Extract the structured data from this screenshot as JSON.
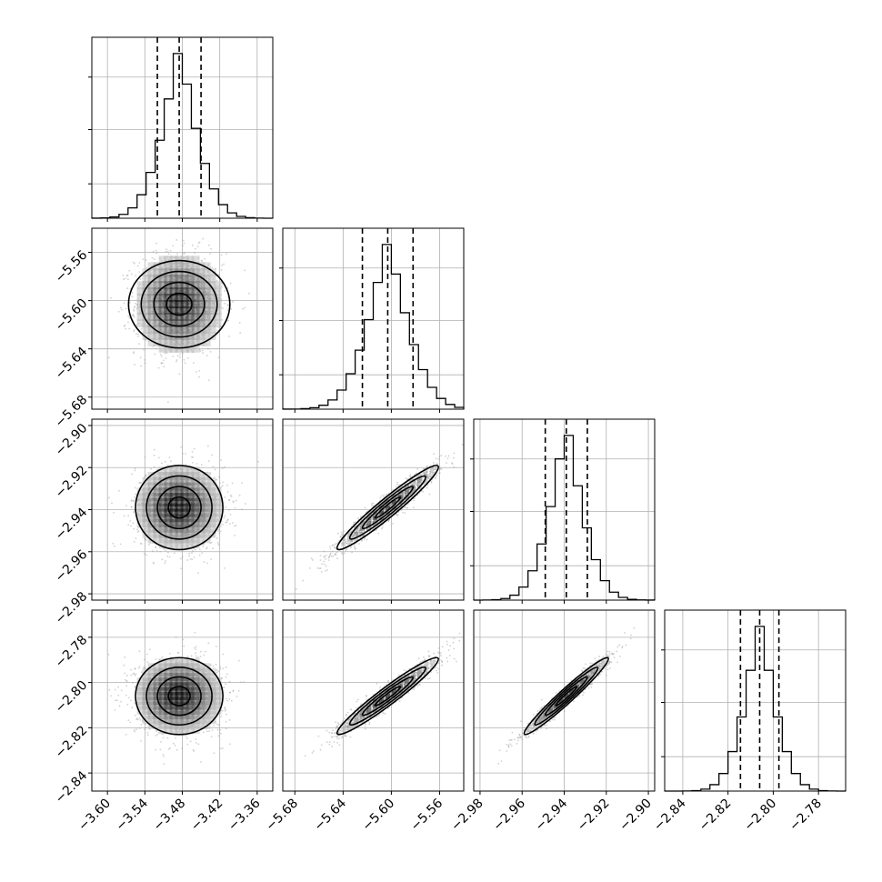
{
  "chart_data": {
    "type": "corner",
    "grid": true,
    "parameters": [
      {
        "index": 0,
        "mean": -3.485,
        "std": 0.035,
        "range": [
          -3.625,
          -3.335
        ],
        "ticks": [
          -3.6,
          -3.54,
          -3.48,
          -3.42,
          -3.36
        ],
        "tick_labels": [
          "−3.60",
          "−3.54",
          "−3.48",
          "−3.42",
          "−3.36"
        ]
      },
      {
        "index": 1,
        "mean": -5.603,
        "std": 0.021,
        "range": [
          -5.69,
          -5.54
        ],
        "ticks": [
          -5.68,
          -5.64,
          -5.6,
          -5.56
        ],
        "tick_labels": [
          "−5.68",
          "−5.64",
          "−5.60",
          "−5.56"
        ]
      },
      {
        "index": 2,
        "mean": -2.939,
        "std": 0.01,
        "range": [
          -2.983,
          -2.897
        ],
        "ticks": [
          -2.98,
          -2.96,
          -2.94,
          -2.92,
          -2.9
        ],
        "tick_labels": [
          "−2.98",
          "−2.96",
          "−2.94",
          "−2.92",
          "−2.90"
        ]
      },
      {
        "index": 3,
        "mean": -2.806,
        "std": 0.0085,
        "range": [
          -2.848,
          -2.768
        ],
        "ticks": [
          -2.84,
          -2.82,
          -2.8,
          -2.78
        ],
        "tick_labels": [
          "−2.84",
          "−2.82",
          "−2.80",
          "−2.78"
        ]
      }
    ],
    "quantiles": [
      0.16,
      0.5,
      0.84
    ],
    "quantile_values": [
      [
        -3.52,
        -3.485,
        -3.45
      ],
      [
        -5.624,
        -5.603,
        -5.582
      ],
      [
        -2.949,
        -2.939,
        -2.929
      ],
      [
        -2.8145,
        -2.806,
        -2.7975
      ]
    ],
    "correlations": [
      [
        1,
        0,
        0,
        0
      ],
      [
        0,
        1,
        0.96,
        0.96
      ],
      [
        0,
        0.96,
        1,
        0.97
      ],
      [
        0,
        0.96,
        0.97,
        1
      ]
    ],
    "histogram_bins": 20,
    "colors": {
      "points": "#9a9a9a",
      "lines": "#000000",
      "grid": "#b0b0b0"
    }
  }
}
